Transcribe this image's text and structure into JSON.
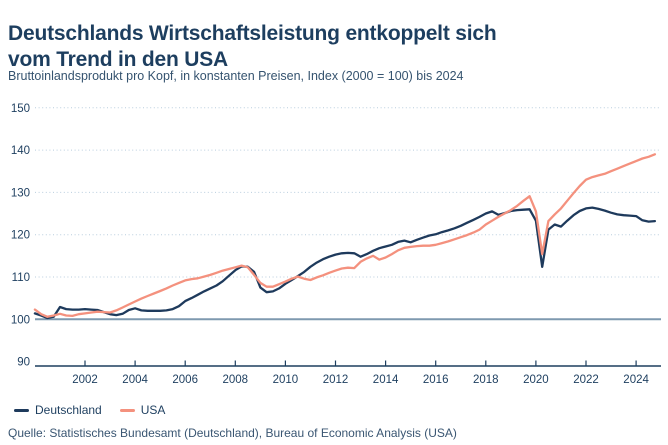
{
  "header": {
    "title_line1": "Deutschlands Wirtschaftsleistung entkoppelt sich",
    "title_line2": "vom Trend in den USA",
    "subtitle": "Bruttoinlandsprodukt pro Kopf, in konstanten Preisen, Index (2000 = 100) bis 2024"
  },
  "legend": {
    "items": [
      {
        "label": "Deutschland",
        "color": "#1e3a5c"
      },
      {
        "label": "USA",
        "color": "#f4917e"
      }
    ]
  },
  "footer": {
    "source": "Quelle: Statistisches Bundesamt (Deutschland), Bureau of Economic Analysis (USA)"
  },
  "colors": {
    "background": "#ffffff",
    "title": "#1d3e5f",
    "subtitle": "#35536f",
    "axis": "#1d3e5f",
    "tick_label": "#1d3e5f",
    "grid_dotted": "#b9cede",
    "baseline_100": "#7e99af",
    "deutschland_line": "#1e3a5c",
    "usa_line": "#f4917e"
  },
  "chart_data": {
    "type": "line",
    "title": "Deutschlands Wirtschaftsleistung entkoppelt sich vom Trend in den USA",
    "subtitle": "Bruttoinlandsprodukt pro Kopf, in konstanten Preisen, Index (2000 = 100) bis 2024",
    "xlabel": "",
    "ylabel": "Index (2000 = 100)",
    "x_start": 2000.0,
    "x_step": 0.25,
    "xlim": [
      2000,
      2025
    ],
    "ylim": [
      89,
      152
    ],
    "baseline": 100,
    "grid": "horizontal-dotted",
    "legend_position": "bottom-left",
    "x_ticks": [
      2002,
      2004,
      2006,
      2008,
      2010,
      2012,
      2014,
      2016,
      2018,
      2020,
      2022,
      2024
    ],
    "y_ticks": [
      90,
      100,
      110,
      120,
      130,
      140,
      150
    ],
    "series": [
      {
        "name": "Deutschland",
        "color": "#1e3a5c",
        "values": [
          101.4,
          100.9,
          100.3,
          100.6,
          102.9,
          102.4,
          102.3,
          102.3,
          102.4,
          102.3,
          102.2,
          101.7,
          101.2,
          101.0,
          101.3,
          102.2,
          102.6,
          102.1,
          102.0,
          102.0,
          102.0,
          102.1,
          102.4,
          103.1,
          104.3,
          105.0,
          105.8,
          106.6,
          107.3,
          108.0,
          109.0,
          110.3,
          111.6,
          112.5,
          112.4,
          111.2,
          107.5,
          106.4,
          106.6,
          107.3,
          108.4,
          109.3,
          110.2,
          111.2,
          112.4,
          113.4,
          114.2,
          114.8,
          115.3,
          115.6,
          115.7,
          115.6,
          114.8,
          115.4,
          116.2,
          116.8,
          117.2,
          117.6,
          118.3,
          118.6,
          118.2,
          118.8,
          119.3,
          119.8,
          120.1,
          120.6,
          121.0,
          121.5,
          122.1,
          122.8,
          123.5,
          124.2,
          125.0,
          125.5,
          124.7,
          125.1,
          125.6,
          125.8,
          125.9,
          126.0,
          123.3,
          112.4,
          121.2,
          122.4,
          121.9,
          123.3,
          124.6,
          125.6,
          126.2,
          126.4,
          126.1,
          125.7,
          125.2,
          124.8,
          124.6,
          124.5,
          124.4,
          123.4,
          123.1,
          123.2
        ]
      },
      {
        "name": "USA",
        "color": "#f4917e",
        "values": [
          102.3,
          101.2,
          100.6,
          100.9,
          101.3,
          100.9,
          100.8,
          101.2,
          101.4,
          101.6,
          101.8,
          101.7,
          101.6,
          102.1,
          102.8,
          103.5,
          104.2,
          104.9,
          105.5,
          106.1,
          106.7,
          107.3,
          108.0,
          108.6,
          109.2,
          109.5,
          109.7,
          110.1,
          110.5,
          111.0,
          111.5,
          111.9,
          112.3,
          112.7,
          112.3,
          110.5,
          108.6,
          107.7,
          107.7,
          108.3,
          108.9,
          109.6,
          110.1,
          109.6,
          109.3,
          109.9,
          110.4,
          111.0,
          111.5,
          112.0,
          112.2,
          112.1,
          113.6,
          114.4,
          115.0,
          114.1,
          114.6,
          115.4,
          116.3,
          116.9,
          117.1,
          117.3,
          117.4,
          117.4,
          117.6,
          118.0,
          118.4,
          118.9,
          119.4,
          119.9,
          120.5,
          121.2,
          122.4,
          123.3,
          124.2,
          125.0,
          125.8,
          126.8,
          128.0,
          129.1,
          125.5,
          115.4,
          123.2,
          124.8,
          126.2,
          128.0,
          129.8,
          131.5,
          133.0,
          133.6,
          134.0,
          134.4,
          135.0,
          135.6,
          136.2,
          136.8,
          137.4,
          138.0,
          138.4,
          139.0
        ]
      }
    ]
  }
}
